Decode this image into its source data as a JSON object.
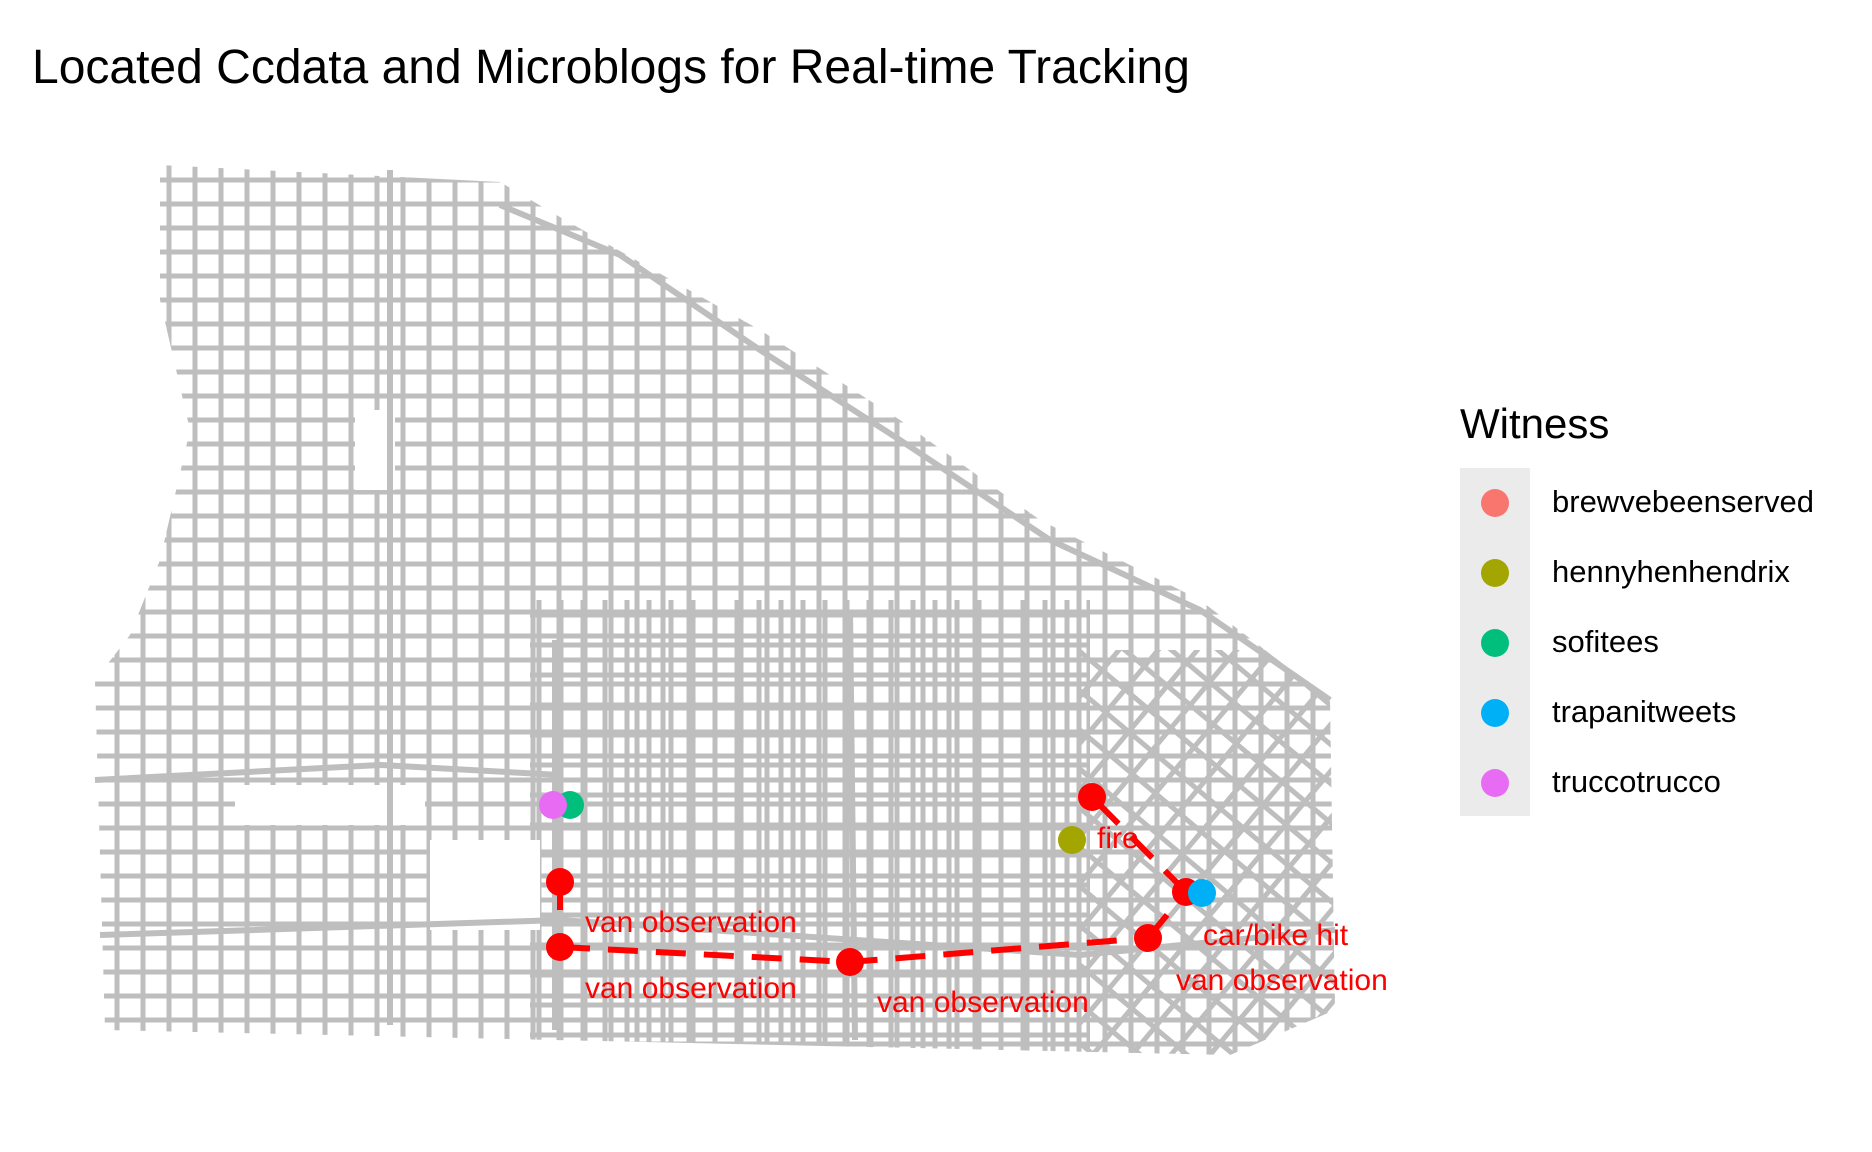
{
  "title": "Located Ccdata and Microblogs for Real-time Tracking",
  "legend": {
    "title": "Witness",
    "items": [
      {
        "label": "brewvebeenserved",
        "color": "#F8766D"
      },
      {
        "label": "hennyhenhendrix",
        "color": "#A3A500"
      },
      {
        "label": "sofitees",
        "color": "#00BF7D"
      },
      {
        "label": "trapanitweets",
        "color": "#00B0F6"
      },
      {
        "label": "truccotrucco",
        "color": "#E76BF3"
      }
    ]
  },
  "route": {
    "color": "#FF0000",
    "events": [
      {
        "label": "van observation"
      },
      {
        "label": "van observation"
      },
      {
        "label": "van observation"
      },
      {
        "label": "car/bike hit"
      },
      {
        "label": "van observation"
      },
      {
        "label": "fire"
      }
    ]
  },
  "street_color": "#BEBEBE"
}
